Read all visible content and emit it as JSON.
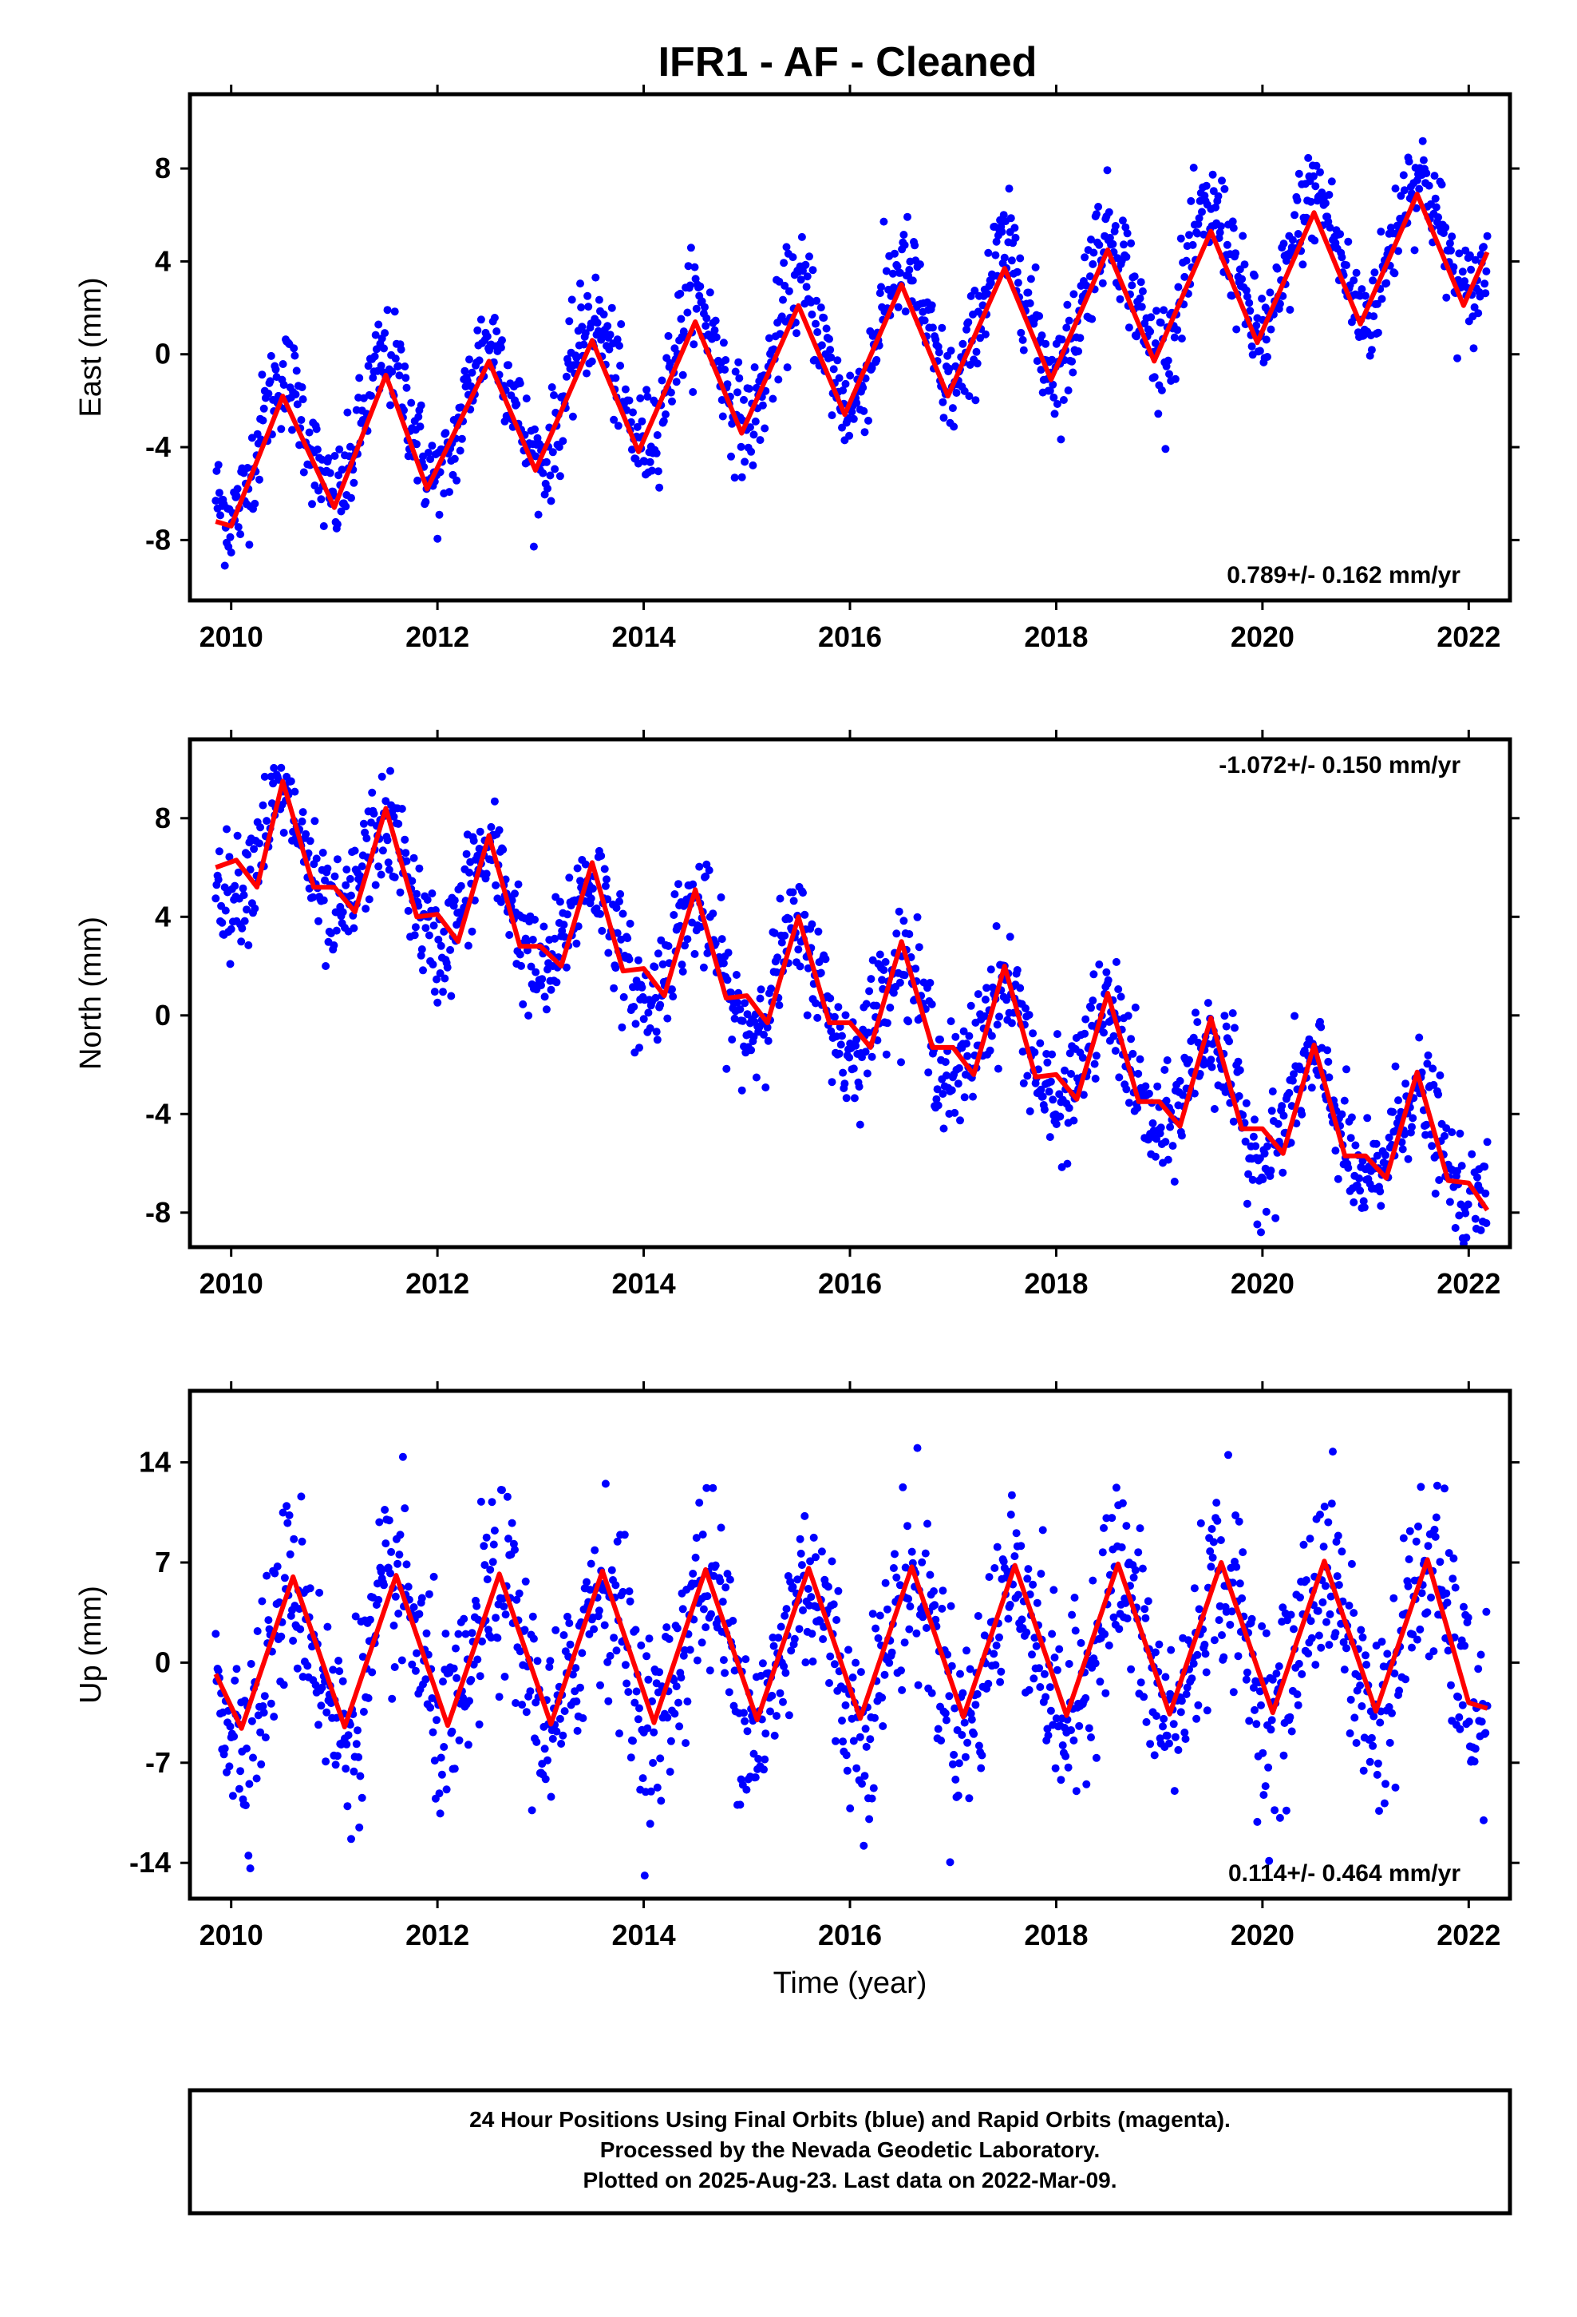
{
  "title": "IFR1  - AF - Cleaned",
  "colors": {
    "final_orbits": "#0000ff",
    "fit": "#ff0000",
    "frame": "#000000"
  },
  "chart_data": [
    {
      "type": "scatter",
      "ylabel": "East (mm)",
      "xlabel": "",
      "xlim": [
        2009.6,
        2022.4
      ],
      "ylim": [
        -10.6,
        11.2
      ],
      "x_ticks": [
        "2010",
        "2012",
        "2014",
        "2016",
        "2018",
        "2020",
        "2022"
      ],
      "y_ticks": [
        "8",
        "4",
        "0",
        "-4",
        "-8"
      ],
      "x_tick_values": [
        2010,
        2012,
        2014,
        2016,
        2018,
        2020,
        2022
      ],
      "y_tick_values": [
        8,
        4,
        0,
        -4,
        -8
      ],
      "rate_label": "0.789+/- 0.162 mm/yr",
      "rate_position": "bottom-right",
      "series": [
        {
          "role": "final_orbits",
          "x_range": [
            2009.85,
            2022.18
          ],
          "linear": {
            "intercept_at_2010": -4.2,
            "slope_per_year": 0.789
          },
          "annual_amplitude": 2.8,
          "annual_peak": 2010.5,
          "noise_sd": 1.1
        },
        {
          "role": "fit",
          "x": [
            2009.85,
            2010.0,
            2010.5,
            2011.0,
            2011.5,
            2011.9,
            2012.5,
            2012.95,
            2013.5,
            2013.95,
            2014.5,
            2014.95,
            2015.5,
            2015.95,
            2016.5,
            2016.95,
            2017.5,
            2017.95,
            2018.5,
            2018.95,
            2019.5,
            2019.95,
            2020.5,
            2020.95,
            2021.5,
            2021.95,
            2022.18
          ],
          "y": [
            -7.2,
            -7.4,
            -1.8,
            -6.6,
            -0.9,
            -5.8,
            -0.3,
            -5.0,
            0.6,
            -4.2,
            1.4,
            -3.4,
            2.1,
            -2.6,
            3.0,
            -1.8,
            3.7,
            -1.1,
            4.5,
            -0.3,
            5.3,
            0.5,
            6.1,
            1.3,
            6.9,
            2.1,
            4.4
          ]
        }
      ]
    },
    {
      "type": "scatter",
      "ylabel": "North (mm)",
      "xlabel": "",
      "xlim": [
        2009.6,
        2022.4
      ],
      "ylim": [
        -9.4,
        11.2
      ],
      "x_ticks": [
        "2010",
        "2012",
        "2014",
        "2016",
        "2018",
        "2020",
        "2022"
      ],
      "y_ticks": [
        "8",
        "4",
        "0",
        "-4",
        "-8"
      ],
      "x_tick_values": [
        2010,
        2012,
        2014,
        2016,
        2018,
        2020,
        2022
      ],
      "y_tick_values": [
        8,
        4,
        0,
        -4,
        -8
      ],
      "rate_label": "-1.072+/- 0.150 mm/yr",
      "rate_position": "top-right",
      "series": [
        {
          "role": "final_orbits",
          "x_range": [
            2009.85,
            2022.18
          ],
          "linear": {
            "intercept_at_2010": 7.0,
            "slope_per_year": -1.072
          },
          "annual_amplitude": 2.2,
          "annual_peak": 2010.5,
          "noise_sd": 1.1
        },
        {
          "role": "fit",
          "x": [
            2009.85,
            2010.05,
            2010.25,
            2010.5,
            2010.8,
            2011.0,
            2011.2,
            2011.5,
            2011.8,
            2012.0,
            2012.2,
            2012.5,
            2012.8,
            2013.0,
            2013.2,
            2013.5,
            2013.8,
            2014.0,
            2014.2,
            2014.5,
            2014.8,
            2015.0,
            2015.2,
            2015.5,
            2015.8,
            2016.0,
            2016.2,
            2016.5,
            2016.8,
            2017.0,
            2017.2,
            2017.5,
            2017.8,
            2018.0,
            2018.2,
            2018.5,
            2018.8,
            2019.0,
            2019.2,
            2019.5,
            2019.8,
            2020.0,
            2020.2,
            2020.5,
            2020.8,
            2021.0,
            2021.2,
            2021.5,
            2021.8,
            2022.0,
            2022.18
          ],
          "y": [
            6.0,
            6.3,
            5.2,
            9.5,
            5.2,
            5.2,
            4.2,
            8.4,
            4.0,
            4.1,
            3.0,
            7.3,
            2.8,
            2.8,
            2.0,
            6.2,
            1.8,
            1.9,
            0.8,
            5.1,
            0.7,
            0.8,
            -0.3,
            4.0,
            -0.3,
            -0.3,
            -1.3,
            3.0,
            -1.3,
            -1.3,
            -2.4,
            2.0,
            -2.5,
            -2.4,
            -3.4,
            0.9,
            -3.5,
            -3.5,
            -4.5,
            -0.1,
            -4.6,
            -4.6,
            -5.6,
            -1.2,
            -5.7,
            -5.7,
            -6.6,
            -2.3,
            -6.7,
            -6.8,
            -7.9
          ]
        }
      ]
    },
    {
      "type": "scatter",
      "ylabel": "Up (mm)",
      "xlabel": "Time (year)",
      "xlim": [
        2009.6,
        2022.4
      ],
      "ylim": [
        -16.5,
        19.0
      ],
      "x_ticks": [
        "2010",
        "2012",
        "2014",
        "2016",
        "2018",
        "2020",
        "2022"
      ],
      "y_ticks": [
        "14",
        "7",
        "0",
        "-7",
        "-14"
      ],
      "x_tick_values": [
        2010,
        2012,
        2014,
        2016,
        2018,
        2020,
        2022
      ],
      "y_tick_values": [
        14,
        7,
        0,
        -7,
        -14
      ],
      "rate_label": "0.114+/- 0.464 mm/yr",
      "rate_position": "bottom-right",
      "series": [
        {
          "role": "final_orbits",
          "x_range": [
            2009.85,
            2022.18
          ],
          "linear": {
            "intercept_at_2010": 0.0,
            "slope_per_year": 0.114
          },
          "annual_amplitude": 5.2,
          "annual_peak": 2010.6,
          "noise_sd": 3.3
        },
        {
          "role": "fit",
          "x": [
            2009.85,
            2010.1,
            2010.6,
            2011.1,
            2011.6,
            2012.1,
            2012.6,
            2013.1,
            2013.6,
            2014.1,
            2014.6,
            2015.1,
            2015.6,
            2016.1,
            2016.6,
            2017.1,
            2017.6,
            2018.1,
            2018.6,
            2019.1,
            2019.6,
            2020.1,
            2020.6,
            2021.1,
            2021.6,
            2022.0,
            2022.18
          ],
          "y": [
            -0.8,
            -4.6,
            6.0,
            -4.5,
            6.1,
            -4.4,
            6.2,
            -4.3,
            6.4,
            -4.2,
            6.5,
            -4.0,
            6.6,
            -3.9,
            6.7,
            -3.8,
            6.8,
            -3.7,
            6.9,
            -3.6,
            7.0,
            -3.5,
            7.1,
            -3.4,
            7.2,
            -2.8,
            -3.2
          ]
        }
      ]
    }
  ],
  "footer": {
    "line1": "24 Hour Positions Using Final Orbits (blue) and Rapid Orbits (magenta).",
    "line2": "Processed by the Nevada Geodetic Laboratory.",
    "line3": "Plotted on 2025-Aug-23. Last data on 2022-Mar-09."
  }
}
